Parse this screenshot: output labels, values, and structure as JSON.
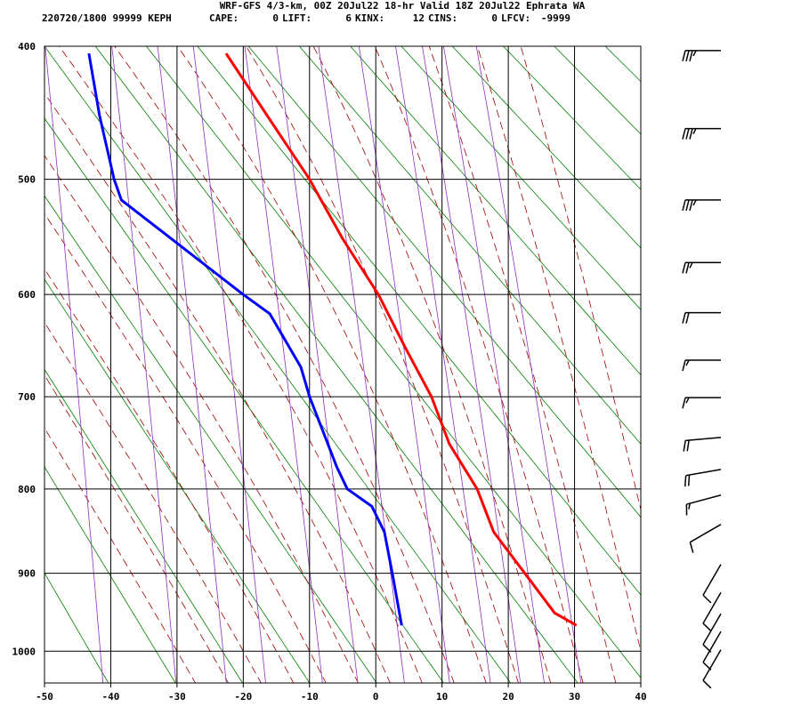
{
  "chart_data": {
    "type": "sounding",
    "title": "WRF-GFS 4/3-km, 00Z 20Jul22 18-hr Valid 18Z 20Jul22 Ephrata WA",
    "station_line": "220720/1800 99999  KEPH",
    "indices": [
      {
        "label": "CAPE:",
        "value": 0
      },
      {
        "label": "LIFT:",
        "value": 6
      },
      {
        "label": "KINX:",
        "value": 12
      },
      {
        "label": "CINS:",
        "value": 0
      },
      {
        "label": "LFCV:",
        "value": -9999
      }
    ],
    "xlim": [
      -50,
      40
    ],
    "xticks": [
      -50,
      -40,
      -30,
      -20,
      -10,
      0,
      10,
      20,
      30,
      40
    ],
    "ylim": [
      1043,
      400
    ],
    "yticks": [
      400,
      500,
      600,
      700,
      800,
      900,
      1000
    ],
    "grid": true,
    "series": [
      {
        "color": "#ff0000",
        "pressure": [
          966,
          950,
          900,
          850,
          800,
          750,
          700,
          650,
          600,
          550,
          500,
          450,
          405
        ],
        "values": [
          30.3,
          27,
          22.5,
          17.8,
          15.3,
          11.1,
          8.4,
          4.4,
          0.4,
          -5,
          -10,
          -16.4,
          -22.6
        ]
      },
      {
        "color": "#0000ff",
        "pressure": [
          966,
          900,
          850,
          820,
          800,
          775,
          700,
          670,
          618,
          600,
          517,
          500,
          450,
          405
        ],
        "values": [
          3.9,
          2.5,
          1.3,
          -0.6,
          -4.3,
          -5.9,
          -10,
          -11.3,
          -16,
          -20,
          -38.4,
          -39.5,
          -41.7,
          -43.3
        ]
      }
    ],
    "wind_barbs": {
      "pressure": [
        403,
        460,
        517,
        571,
        617,
        663,
        701,
        743,
        778,
        807,
        841,
        889,
        924,
        951,
        974,
        998
      ],
      "direction": [
        270,
        270,
        270,
        270,
        270,
        270,
        270,
        265,
        260,
        255,
        240,
        210,
        210,
        210,
        210,
        210
      ],
      "speed": [
        35,
        35,
        35,
        25,
        20,
        15,
        15,
        20,
        20,
        15,
        10,
        10,
        10,
        10,
        10,
        10
      ]
    }
  }
}
